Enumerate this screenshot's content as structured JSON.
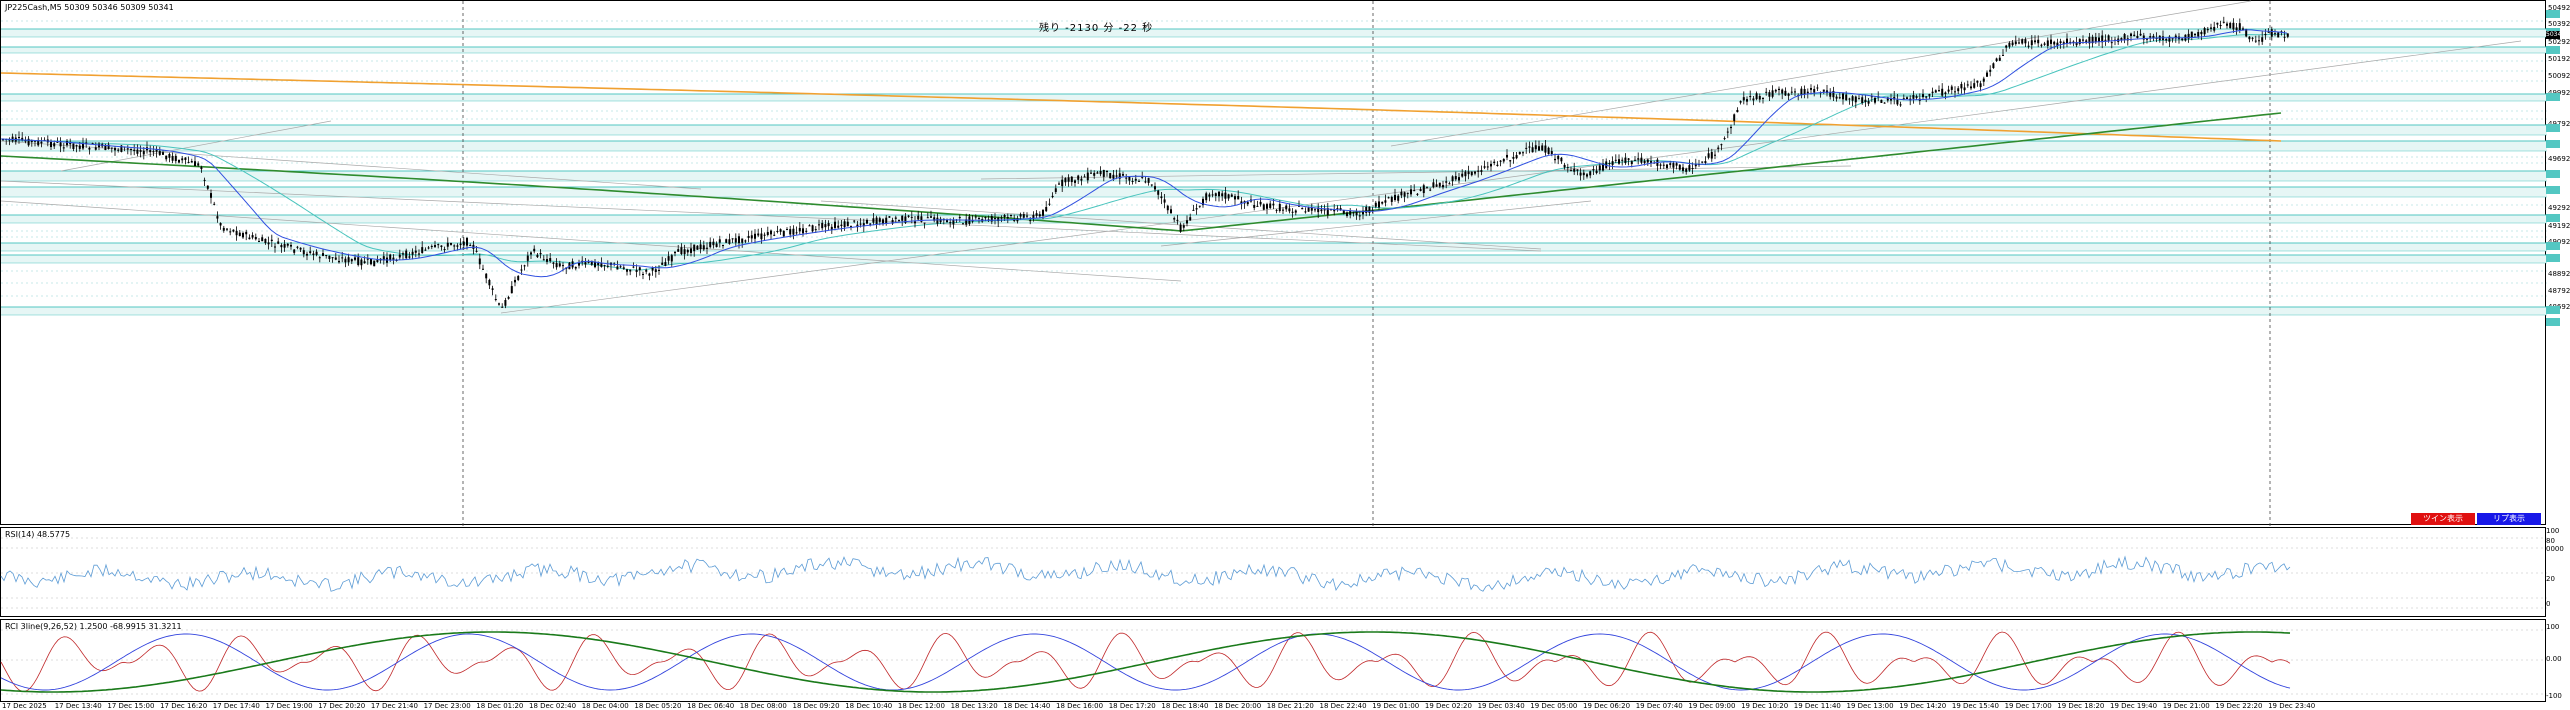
{
  "main": {
    "header": "JP225Cash,M5  50309 50346 50309 50341",
    "timer": "残り -2130 分 -22 秒",
    "price_scale": [
      "50492",
      "50392",
      "50292",
      "50192",
      "50092",
      "49992",
      "49792",
      "49692",
      "49292",
      "49192",
      "49092",
      "48892",
      "48792",
      "48692"
    ],
    "current_price": "50341",
    "buttons": {
      "red": "ツイン表示",
      "blue": "リプ表示"
    }
  },
  "rsi": {
    "header": "RSI(14) 48.5775",
    "scale": [
      "100",
      "80",
      "0000",
      "20",
      "0"
    ]
  },
  "rci": {
    "header": "RCI 3line(9,26,52) 1.2500 -68.9915 31.3211",
    "scale": [
      "100",
      "0.00",
      "-100"
    ]
  },
  "x_axis": [
    "17 Dec 2025",
    "17 Dec 13:40",
    "17 Dec 15:00",
    "17 Dec 16:20",
    "17 Dec 17:40",
    "17 Dec 19:00",
    "17 Dec 20:20",
    "17 Dec 21:40",
    "17 Dec 23:00",
    "18 Dec 01:20",
    "18 Dec 02:40",
    "18 Dec 04:00",
    "18 Dec 05:20",
    "18 Dec 06:40",
    "18 Dec 08:00",
    "18 Dec 09:20",
    "18 Dec 10:40",
    "18 Dec 12:00",
    "18 Dec 13:20",
    "18 Dec 14:40",
    "18 Dec 16:00",
    "18 Dec 17:20",
    "18 Dec 18:40",
    "18 Dec 20:00",
    "18 Dec 21:20",
    "18 Dec 22:40",
    "19 Dec 01:00",
    "19 Dec 02:20",
    "19 Dec 03:40",
    "19 Dec 05:00",
    "19 Dec 06:20",
    "19 Dec 07:40",
    "19 Dec 09:00",
    "19 Dec 10:20",
    "19 Dec 11:40",
    "19 Dec 13:00",
    "19 Dec 14:20",
    "19 Dec 15:40",
    "19 Dec 17:00",
    "19 Dec 18:20",
    "19 Dec 19:40",
    "19 Dec 21:00",
    "19 Dec 22:20",
    "19 Dec 23:40"
  ],
  "colors": {
    "teal": "#53c7c2",
    "band": "#e6f6f5",
    "ma_orange": "#f0a030",
    "ma_green": "#2e8b2e",
    "ma_blue": "#3050e0",
    "candle": "#000000",
    "rsi_line": "#5b9bd5",
    "rci_red": "#c0282a",
    "rci_blue": "#3344dd",
    "rci_green": "#1a7a1a"
  }
}
